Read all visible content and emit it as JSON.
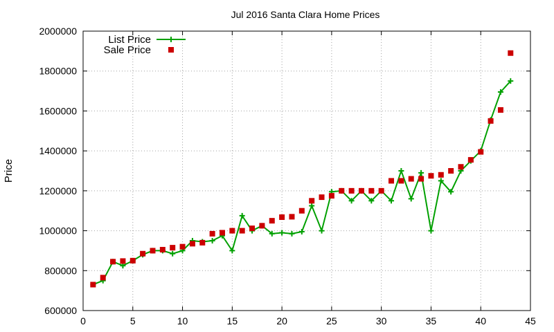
{
  "chart_data": {
    "type": "line",
    "title": "Jul 2016 Santa Clara Home Prices",
    "xlabel": "",
    "ylabel": "Price",
    "xlim": [
      0,
      45
    ],
    "ylim": [
      600000,
      2000000
    ],
    "x_ticks": [
      0,
      5,
      10,
      15,
      20,
      25,
      30,
      35,
      40,
      45
    ],
    "y_ticks": [
      600000,
      800000,
      1000000,
      1200000,
      1400000,
      1600000,
      1800000,
      2000000
    ],
    "grid": true,
    "legend_position": "top-left",
    "x": [
      1,
      2,
      3,
      4,
      5,
      6,
      7,
      8,
      9,
      10,
      11,
      12,
      13,
      14,
      15,
      16,
      17,
      18,
      19,
      20,
      21,
      22,
      23,
      24,
      25,
      26,
      27,
      28,
      29,
      30,
      31,
      32,
      33,
      34,
      35,
      36,
      37,
      38,
      39,
      40,
      41,
      42,
      43
    ],
    "series": [
      {
        "name": "List Price",
        "style": "line-with-plus-markers",
        "color": "#00a000",
        "values": [
          730000,
          750000,
          845000,
          825000,
          850000,
          880000,
          900000,
          900000,
          885000,
          900000,
          950000,
          945000,
          950000,
          975000,
          900000,
          1075000,
          1000000,
          1025000,
          985000,
          990000,
          985000,
          995000,
          1125000,
          1000000,
          1195000,
          1200000,
          1150000,
          1200000,
          1150000,
          1200000,
          1150000,
          1300000,
          1160000,
          1290000,
          1000000,
          1250000,
          1195000,
          1300000,
          1350000,
          1400000,
          1555000,
          1695000,
          1750000
        ]
      },
      {
        "name": "Sale Price",
        "style": "square-markers",
        "color": "#cc0000",
        "values": [
          730000,
          765000,
          845000,
          848000,
          850000,
          885000,
          900000,
          905000,
          915000,
          920000,
          935000,
          940000,
          985000,
          990000,
          1000000,
          1000000,
          1012000,
          1025000,
          1050000,
          1068000,
          1070000,
          1100000,
          1150000,
          1168000,
          1175000,
          1200000,
          1200000,
          1200000,
          1200000,
          1200000,
          1250000,
          1250000,
          1260000,
          1260000,
          1275000,
          1280000,
          1300000,
          1320000,
          1355000,
          1395000,
          1550000,
          1605000,
          1890000
        ]
      }
    ]
  }
}
